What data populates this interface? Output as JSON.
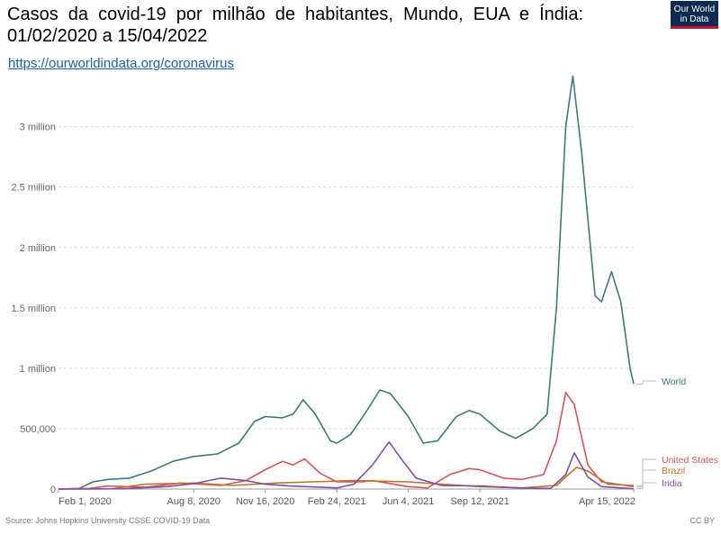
{
  "header": {
    "title": "Casos da covid-19 por milhão de habitantes, Mundo, EUA e Índia: 01/02/2020 a 15/04/2022",
    "link": "https://ourworldindata.org/coronavirus",
    "logo_line1": "Our World",
    "logo_line2": "in Data"
  },
  "footer": {
    "source": "Source: Johns Hopkins University CSSE COVID-19 Data",
    "license": "CC BY"
  },
  "chart_data": {
    "type": "line",
    "title": "Casos da covid-19 por milhão de habitantes, Mundo, EUA e Índia: 01/02/2020 a 15/04/2022",
    "xlabel": "",
    "ylabel": "",
    "ylim": [
      0,
      3400000
    ],
    "y_ticks": [
      0,
      500000,
      1000000,
      1500000,
      2000000,
      2500000,
      3000000
    ],
    "y_tick_labels": [
      "0",
      "500,000",
      "1 million",
      "1.5 million",
      "2 million",
      "2.5 million",
      "3 million"
    ],
    "x_range": [
      "2020-02-01",
      "2022-04-15"
    ],
    "x_ticks": [
      "2020-02-01",
      "2020-08-08",
      "2020-11-16",
      "2021-02-24",
      "2021-06-04",
      "2021-09-12",
      "2022-04-15"
    ],
    "x_tick_labels": [
      "Feb 1, 2020",
      "Aug 8, 2020",
      "Nov 16, 2020",
      "Feb 24, 2021",
      "Jun 4, 2021",
      "Sep 12, 2021",
      "Apr 15, 2022"
    ],
    "grid": true,
    "legend": "right, line-end labels",
    "series": [
      {
        "name": "World",
        "color": "#3d7a74",
        "points": [
          [
            "2020-02-01",
            0
          ],
          [
            "2020-03-01",
            5000
          ],
          [
            "2020-03-20",
            60000
          ],
          [
            "2020-04-10",
            80000
          ],
          [
            "2020-05-10",
            90000
          ],
          [
            "2020-06-10",
            150000
          ],
          [
            "2020-07-10",
            230000
          ],
          [
            "2020-08-08",
            270000
          ],
          [
            "2020-09-10",
            290000
          ],
          [
            "2020-10-10",
            380000
          ],
          [
            "2020-11-01",
            560000
          ],
          [
            "2020-11-16",
            600000
          ],
          [
            "2020-12-10",
            590000
          ],
          [
            "2020-12-25",
            620000
          ],
          [
            "2021-01-08",
            740000
          ],
          [
            "2021-01-25",
            620000
          ],
          [
            "2021-02-15",
            400000
          ],
          [
            "2021-02-24",
            380000
          ],
          [
            "2021-03-15",
            450000
          ],
          [
            "2021-04-05",
            630000
          ],
          [
            "2021-04-25",
            820000
          ],
          [
            "2021-05-10",
            790000
          ],
          [
            "2021-06-04",
            600000
          ],
          [
            "2021-06-25",
            380000
          ],
          [
            "2021-07-15",
            400000
          ],
          [
            "2021-08-10",
            600000
          ],
          [
            "2021-08-28",
            650000
          ],
          [
            "2021-09-12",
            620000
          ],
          [
            "2021-10-10",
            480000
          ],
          [
            "2021-11-01",
            420000
          ],
          [
            "2021-11-25",
            500000
          ],
          [
            "2021-12-15",
            620000
          ],
          [
            "2021-12-28",
            1500000
          ],
          [
            "2022-01-10",
            3000000
          ],
          [
            "2022-01-20",
            3420000
          ],
          [
            "2022-02-01",
            2800000
          ],
          [
            "2022-02-20",
            1600000
          ],
          [
            "2022-03-01",
            1550000
          ],
          [
            "2022-03-15",
            1800000
          ],
          [
            "2022-03-28",
            1550000
          ],
          [
            "2022-04-10",
            1000000
          ],
          [
            "2022-04-15",
            870000
          ]
        ]
      },
      {
        "name": "United States",
        "color": "#d9535a",
        "points": [
          [
            "2020-02-01",
            0
          ],
          [
            "2020-03-15",
            5000
          ],
          [
            "2020-04-10",
            25000
          ],
          [
            "2020-06-01",
            15000
          ],
          [
            "2020-07-20",
            50000
          ],
          [
            "2020-09-15",
            30000
          ],
          [
            "2020-10-20",
            70000
          ],
          [
            "2020-11-16",
            160000
          ],
          [
            "2020-12-10",
            230000
          ],
          [
            "2020-12-25",
            200000
          ],
          [
            "2021-01-10",
            250000
          ],
          [
            "2021-02-01",
            130000
          ],
          [
            "2021-02-24",
            60000
          ],
          [
            "2021-04-01",
            60000
          ],
          [
            "2021-04-15",
            70000
          ],
          [
            "2021-06-04",
            20000
          ],
          [
            "2021-07-01",
            10000
          ],
          [
            "2021-08-01",
            120000
          ],
          [
            "2021-08-28",
            170000
          ],
          [
            "2021-09-12",
            160000
          ],
          [
            "2021-10-15",
            90000
          ],
          [
            "2021-11-10",
            80000
          ],
          [
            "2021-12-10",
            120000
          ],
          [
            "2021-12-28",
            400000
          ],
          [
            "2022-01-10",
            800000
          ],
          [
            "2022-01-22",
            700000
          ],
          [
            "2022-02-10",
            200000
          ],
          [
            "2022-03-01",
            60000
          ],
          [
            "2022-04-15",
            20000
          ]
        ]
      },
      {
        "name": "Brazil",
        "color": "#c0732a",
        "points": [
          [
            "2020-02-01",
            0
          ],
          [
            "2020-04-15",
            2000
          ],
          [
            "2020-06-01",
            40000
          ],
          [
            "2020-08-08",
            50000
          ],
          [
            "2020-10-01",
            30000
          ],
          [
            "2020-12-01",
            50000
          ],
          [
            "2021-01-20",
            60000
          ],
          [
            "2021-03-20",
            70000
          ],
          [
            "2021-06-04",
            60000
          ],
          [
            "2021-07-20",
            40000
          ],
          [
            "2021-09-12",
            20000
          ],
          [
            "2021-11-10",
            10000
          ],
          [
            "2021-12-28",
            30000
          ],
          [
            "2022-01-25",
            180000
          ],
          [
            "2022-02-10",
            150000
          ],
          [
            "2022-03-10",
            40000
          ],
          [
            "2022-04-15",
            30000
          ]
        ]
      },
      {
        "name": "India",
        "color": "#7c4fa0",
        "points": [
          [
            "2020-02-01",
            0
          ],
          [
            "2020-05-01",
            2000
          ],
          [
            "2020-07-01",
            20000
          ],
          [
            "2020-08-08",
            45000
          ],
          [
            "2020-09-15",
            90000
          ],
          [
            "2020-10-20",
            70000
          ],
          [
            "2020-11-16",
            40000
          ],
          [
            "2020-12-20",
            25000
          ],
          [
            "2021-02-24",
            10000
          ],
          [
            "2021-03-20",
            40000
          ],
          [
            "2021-04-15",
            200000
          ],
          [
            "2021-05-08",
            390000
          ],
          [
            "2021-05-25",
            250000
          ],
          [
            "2021-06-15",
            90000
          ],
          [
            "2021-07-20",
            30000
          ],
          [
            "2021-09-12",
            25000
          ],
          [
            "2021-11-10",
            8000
          ],
          [
            "2021-12-20",
            5000
          ],
          [
            "2022-01-10",
            120000
          ],
          [
            "2022-01-22",
            300000
          ],
          [
            "2022-02-10",
            100000
          ],
          [
            "2022-03-01",
            20000
          ],
          [
            "2022-04-15",
            2000
          ]
        ]
      }
    ]
  }
}
